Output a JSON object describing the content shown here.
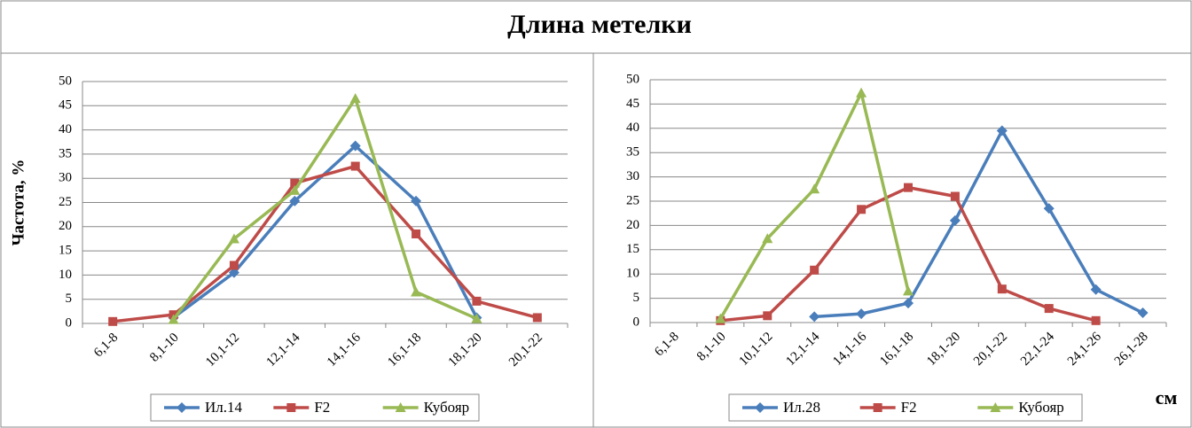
{
  "title": "Длина метелки",
  "chart_data": [
    {
      "type": "line",
      "ylabel": "Частота, %",
      "categories": [
        "6,1-8",
        "8,1-10",
        "10,1-12",
        "12,1-14",
        "14,1-16",
        "16,1-18",
        "18,1-20",
        "20,1-22"
      ],
      "series": [
        {
          "name": "Ил.14",
          "color": "#4a7ebb",
          "marker": "diamond",
          "values": [
            null,
            1.2,
            10.5,
            25.3,
            36.7,
            25.3,
            1.2,
            null
          ]
        },
        {
          "name": "F2",
          "color": "#be4b48",
          "marker": "square",
          "values": [
            0.4,
            1.8,
            12,
            29,
            32.5,
            18.5,
            4.6,
            1.2
          ]
        },
        {
          "name": "Кубояр",
          "color": "#98b954",
          "marker": "triangle",
          "values": [
            null,
            0.8,
            17.5,
            27.5,
            46.5,
            6.5,
            1,
            null
          ]
        }
      ],
      "ylim": [
        0,
        50
      ],
      "yticks": [
        0,
        5,
        10,
        15,
        20,
        25,
        30,
        35,
        40,
        45,
        50
      ],
      "grid": true
    },
    {
      "type": "line",
      "xlabel": "см",
      "categories": [
        "6,1-8",
        "8,1-10",
        "10,1-12",
        "12,1-14",
        "14,1-16",
        "16,1-18",
        "18,1-20",
        "20,1-22",
        "22,1-24",
        "24,1-26",
        "26,1-28"
      ],
      "series": [
        {
          "name": "Ил.28",
          "color": "#4a7ebb",
          "marker": "diamond",
          "values": [
            null,
            null,
            null,
            1.2,
            1.8,
            4,
            21,
            39.5,
            23.5,
            6.8,
            2
          ]
        },
        {
          "name": "F2",
          "color": "#be4b48",
          "marker": "square",
          "values": [
            null,
            0.4,
            1.4,
            10.8,
            23.3,
            27.8,
            26,
            6.9,
            2.9,
            0.4,
            null
          ]
        },
        {
          "name": "Кубояр",
          "color": "#98b954",
          "marker": "triangle",
          "values": [
            null,
            0.8,
            17.3,
            27.5,
            47.3,
            6.5,
            null,
            null,
            null,
            null,
            null
          ]
        }
      ],
      "ylim": [
        0,
        50
      ],
      "yticks": [
        0,
        5,
        10,
        15,
        20,
        25,
        30,
        35,
        40,
        45,
        50
      ],
      "grid": true
    }
  ]
}
